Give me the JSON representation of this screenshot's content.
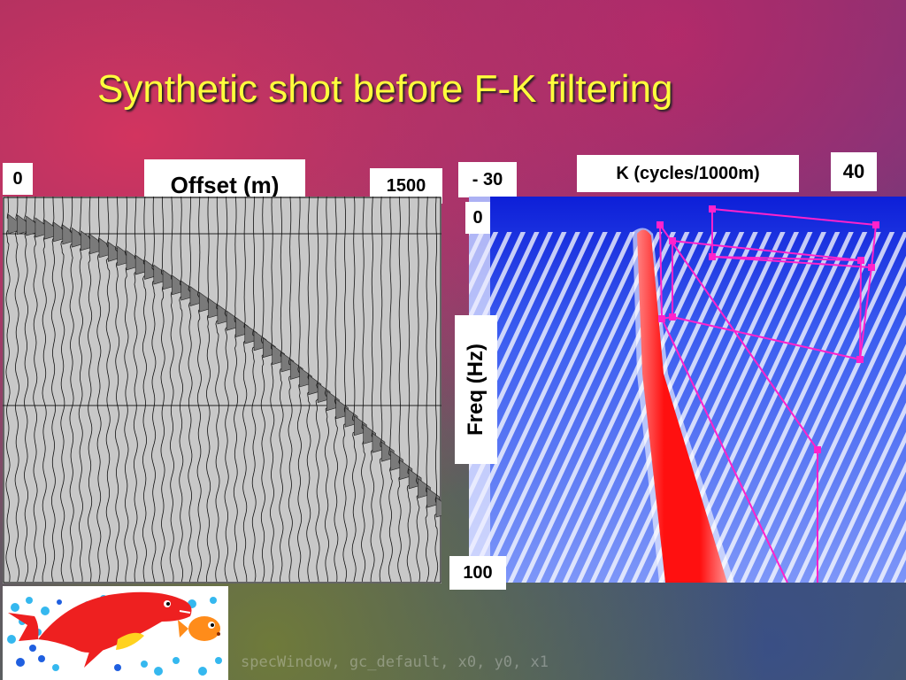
{
  "title": "Synthetic shot before F-K filtering",
  "seismic": {
    "offset_start": "0",
    "offset_label": "Offset (m)",
    "offset_end": "1500"
  },
  "fk": {
    "k_start": "- 30",
    "k_label": "K (cycles/1000m)",
    "k_end": "40",
    "freq_start": "0",
    "freq_label": "Freq (Hz)",
    "freq_end": "100"
  },
  "background_code": "specWindow, gc_default, x0, y0, x1",
  "colors": {
    "title": "#ffff3c",
    "fk_background": "#1530e0",
    "fk_energy": "#ff1010",
    "polygon": "#ff22cc"
  },
  "icons": [
    "fish-clipart-icon"
  ]
}
